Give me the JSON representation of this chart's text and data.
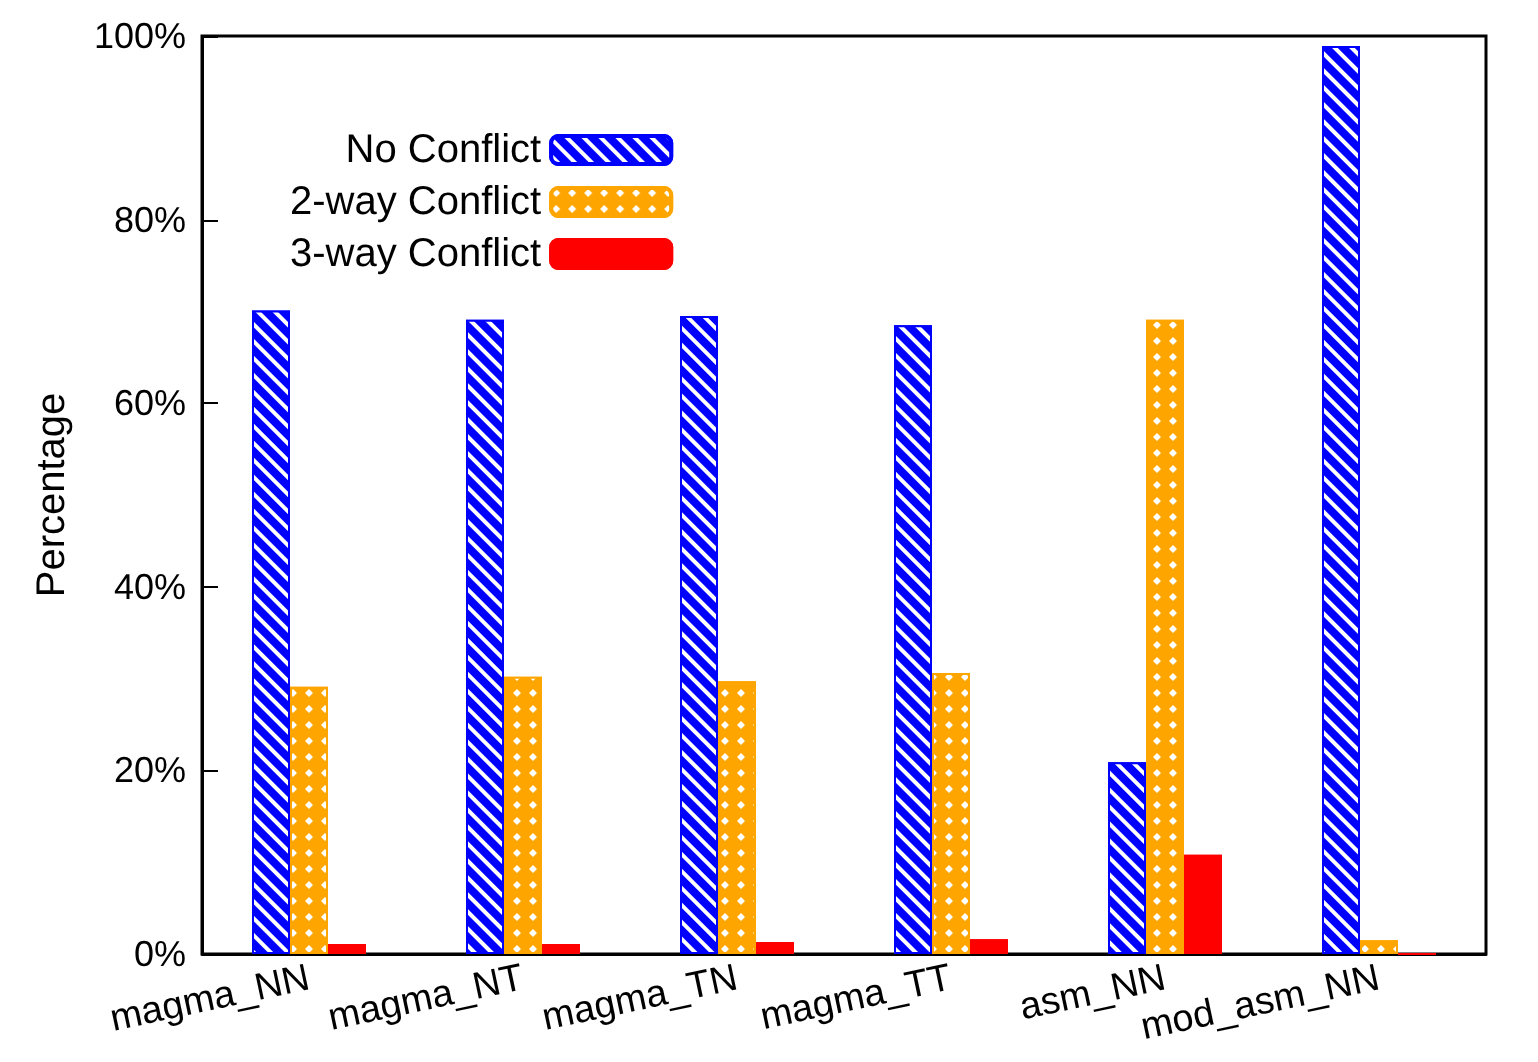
{
  "chart_data": {
    "type": "bar",
    "ylabel": "Percentage",
    "categories": [
      "magma_NN",
      "magma_NT",
      "magma_TN",
      "magma_TT",
      "asm_NN",
      "mod_asm_NN"
    ],
    "series": [
      {
        "name": "No Conflict",
        "color": "#0000ff",
        "values": [
          70.1,
          69.1,
          69.5,
          68.5,
          20.9,
          98.9
        ]
      },
      {
        "name": "2-way Conflict",
        "color": "#ffa500",
        "values": [
          29.1,
          30.2,
          29.7,
          30.6,
          69.1,
          1.5
        ]
      },
      {
        "name": "3-way Conflict",
        "color": "#ff0000",
        "values": [
          1.1,
          1.1,
          1.3,
          1.6,
          10.8,
          0
        ]
      }
    ],
    "ylim": [
      0,
      100
    ],
    "yticks": [
      {
        "value": 0,
        "label": "0%"
      },
      {
        "value": 20,
        "label": "20%"
      },
      {
        "value": 40,
        "label": "40%"
      },
      {
        "value": 60,
        "label": "60%"
      },
      {
        "value": 80,
        "label": "80%"
      },
      {
        "value": 100,
        "label": "100%"
      }
    ],
    "grid": false,
    "legend": "top left"
  }
}
